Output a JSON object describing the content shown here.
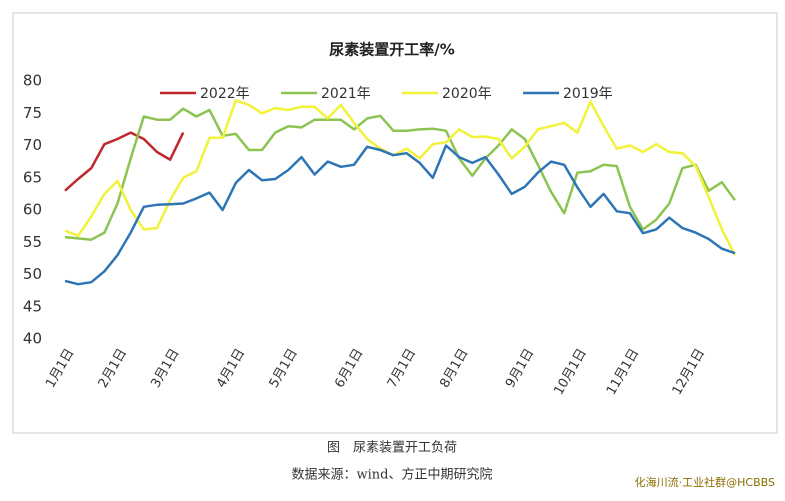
{
  "chart_data": {
    "type": "line",
    "title": "尿素装置开工率/%",
    "categories": [
      "1月1日",
      null,
      null,
      null,
      "2月1日",
      null,
      null,
      null,
      "3月1日",
      null,
      null,
      null,
      null,
      "4月1日",
      null,
      null,
      null,
      "5月1日",
      null,
      null,
      null,
      null,
      "6月1日",
      null,
      null,
      null,
      "7月1日",
      null,
      null,
      null,
      "8月1日",
      null,
      null,
      null,
      null,
      "9月1日",
      null,
      null,
      null,
      "10月1日",
      null,
      null,
      null,
      "11月1日",
      null,
      null,
      null,
      null,
      "12月1日",
      null,
      null,
      null
    ],
    "series": [
      {
        "name": "2022年",
        "color": "#c0272d",
        "values": [
          63,
          64.8,
          66.5,
          70.2,
          71,
          72,
          71,
          69,
          67.8,
          72,
          null,
          null,
          null,
          null,
          null,
          null,
          null,
          null,
          null,
          null,
          null,
          null,
          null,
          null,
          null,
          null,
          null,
          null,
          null,
          null,
          null,
          null,
          null,
          null,
          null,
          null,
          null,
          null,
          null,
          null,
          null,
          null,
          null,
          null,
          null,
          null,
          null,
          null,
          null,
          null,
          null,
          null
        ]
      },
      {
        "name": "2021年",
        "color": "#8dc451",
        "values": [
          55.8,
          55.6,
          55.4,
          56.5,
          61,
          68,
          74.5,
          74,
          74,
          75.7,
          74.5,
          75.5,
          71.5,
          71.8,
          69.3,
          69.3,
          72,
          73,
          72.8,
          74,
          74,
          74,
          72.5,
          74.2,
          74.6,
          72.3,
          72.3,
          72.5,
          72.6,
          72.3,
          68,
          65.3,
          68,
          70,
          72.5,
          71,
          67,
          62.8,
          59.5,
          65.8,
          66,
          67,
          66.8,
          60.5,
          57,
          58.5,
          61,
          66.5,
          67,
          63,
          64.3,
          61.5
        ]
      },
      {
        "name": "2020年",
        "color": "#f2f23a",
        "values": [
          56.8,
          56,
          59,
          62.5,
          64.5,
          60,
          57,
          57.2,
          61.5,
          65,
          66,
          71.2,
          71.2,
          77,
          76.3,
          75,
          75.8,
          75.5,
          76,
          76,
          74.2,
          76.3,
          73.5,
          71,
          69.5,
          68.5,
          69.5,
          68,
          70.2,
          70.5,
          72.5,
          71.3,
          71.4,
          71,
          68,
          69.8,
          72.5,
          73,
          73.5,
          72,
          76.8,
          73,
          69.5,
          70,
          69,
          70.2,
          69,
          68.8,
          66.8,
          62,
          57,
          53
        ]
      },
      {
        "name": "2019年",
        "color": "#2e75b6",
        "values": [
          49,
          48.5,
          48.8,
          50.5,
          53,
          56.5,
          60.5,
          60.8,
          60.9,
          61,
          61.8,
          62.7,
          60,
          64.2,
          66.2,
          64.6,
          64.8,
          66.2,
          68.2,
          65.5,
          67.5,
          66.7,
          67,
          69.8,
          69.3,
          68.5,
          68.8,
          67.3,
          65,
          70,
          68.2,
          67.3,
          68.2,
          65.5,
          62.5,
          63.6,
          65.8,
          67.5,
          67,
          63.5,
          60.5,
          62.5,
          59.8,
          59.5,
          56.4,
          57,
          58.8,
          57.2,
          56.5,
          55.5,
          54,
          53.3
        ]
      }
    ],
    "ylim": [
      40,
      80
    ],
    "yticks": [
      40,
      45,
      50,
      55,
      60,
      65,
      70,
      75,
      80
    ],
    "grid": false,
    "legend": "top"
  },
  "caption": "图　尿素装置开工负荷",
  "source": "数据来源：wind、方正中期研究院",
  "watermark": "化海川流·工业社群@HCBBS"
}
